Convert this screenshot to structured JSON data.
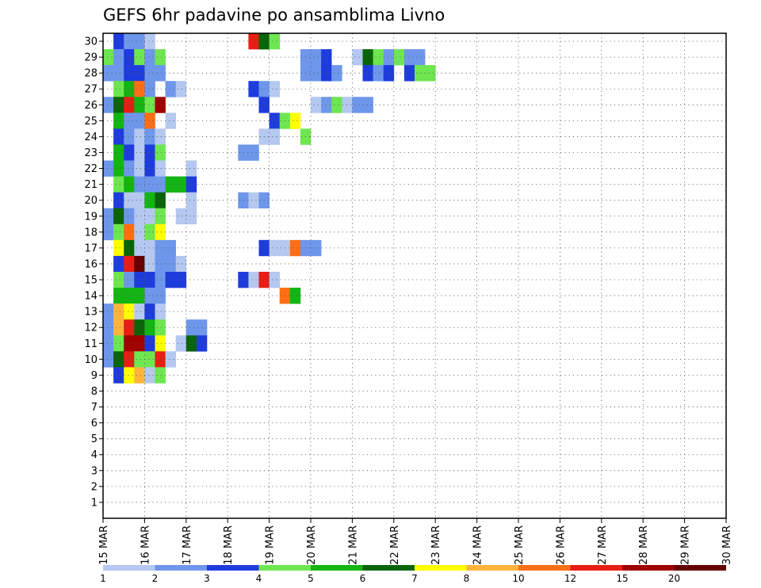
{
  "chart_data": {
    "type": "heatmap",
    "title": "GEFS 6hr padavine po ansamblima Livno",
    "xlabel": "",
    "ylabel": "",
    "x_tick_labels": [
      "15 MAR",
      "16 MAR",
      "17 MAR",
      "18 MAR",
      "19 MAR",
      "20 MAR",
      "21 MAR",
      "22 MAR",
      "23 MAR",
      "24 MAR",
      "25 MAR",
      "26 MAR",
      "27 MAR",
      "28 MAR",
      "29 MAR",
      "30 MAR"
    ],
    "y_tick_labels": [
      "1",
      "2",
      "3",
      "4",
      "5",
      "6",
      "7",
      "8",
      "9",
      "10",
      "11",
      "12",
      "13",
      "14",
      "15",
      "16",
      "17",
      "18",
      "19",
      "20",
      "21",
      "22",
      "23",
      "24",
      "25",
      "26",
      "27",
      "28",
      "29",
      "30"
    ],
    "time_steps": 60,
    "members": 30,
    "grid": true,
    "colorbar": {
      "labels": [
        "1",
        "2",
        "3",
        "4",
        "5",
        "6",
        "7",
        "8",
        "10",
        "12",
        "15",
        "20"
      ],
      "colors": [
        "#b4c8f0",
        "#6e96eb",
        "#1e3cdc",
        "#6ee650",
        "#14b414",
        "#0a640a",
        "#ffff00",
        "#ffb43c",
        "#ff6e14",
        "#e61e14",
        "#a00000",
        "#640000"
      ]
    },
    "cells": [
      [
        1,
        30,
        2
      ],
      [
        2,
        30,
        1
      ],
      [
        3,
        30,
        1
      ],
      [
        4,
        30,
        0
      ],
      [
        14,
        30,
        9
      ],
      [
        15,
        30,
        5
      ],
      [
        16,
        30,
        3
      ],
      [
        0,
        29,
        3
      ],
      [
        1,
        29,
        1
      ],
      [
        2,
        29,
        2
      ],
      [
        3,
        29,
        3
      ],
      [
        4,
        29,
        1
      ],
      [
        5,
        29,
        3
      ],
      [
        19,
        29,
        1
      ],
      [
        20,
        29,
        1
      ],
      [
        21,
        29,
        2
      ],
      [
        24,
        29,
        0
      ],
      [
        25,
        29,
        5
      ],
      [
        26,
        29,
        3
      ],
      [
        27,
        29,
        1
      ],
      [
        28,
        29,
        3
      ],
      [
        29,
        29,
        1
      ],
      [
        30,
        29,
        1
      ],
      [
        0,
        28,
        1
      ],
      [
        1,
        28,
        1
      ],
      [
        2,
        28,
        2
      ],
      [
        3,
        28,
        2
      ],
      [
        4,
        28,
        1
      ],
      [
        5,
        28,
        1
      ],
      [
        19,
        28,
        1
      ],
      [
        20,
        28,
        1
      ],
      [
        21,
        28,
        2
      ],
      [
        22,
        28,
        1
      ],
      [
        25,
        28,
        2
      ],
      [
        26,
        28,
        1
      ],
      [
        27,
        28,
        2
      ],
      [
        29,
        28,
        2
      ],
      [
        30,
        28,
        3
      ],
      [
        31,
        28,
        3
      ],
      [
        1,
        27,
        3
      ],
      [
        2,
        27,
        4
      ],
      [
        3,
        27,
        8
      ],
      [
        4,
        27,
        1
      ],
      [
        6,
        27,
        1
      ],
      [
        7,
        27,
        0
      ],
      [
        14,
        27,
        2
      ],
      [
        15,
        27,
        1
      ],
      [
        16,
        27,
        0
      ],
      [
        0,
        26,
        1
      ],
      [
        1,
        26,
        5
      ],
      [
        2,
        26,
        9
      ],
      [
        3,
        26,
        4
      ],
      [
        4,
        26,
        3
      ],
      [
        5,
        26,
        10
      ],
      [
        15,
        26,
        2
      ],
      [
        20,
        26,
        0
      ],
      [
        21,
        26,
        1
      ],
      [
        22,
        26,
        3
      ],
      [
        23,
        26,
        0
      ],
      [
        24,
        26,
        1
      ],
      [
        25,
        26,
        1
      ],
      [
        1,
        25,
        4
      ],
      [
        2,
        25,
        1
      ],
      [
        3,
        25,
        1
      ],
      [
        4,
        25,
        8
      ],
      [
        6,
        25,
        0
      ],
      [
        16,
        25,
        2
      ],
      [
        17,
        25,
        3
      ],
      [
        18,
        25,
        6
      ],
      [
        1,
        24,
        2
      ],
      [
        2,
        24,
        1
      ],
      [
        3,
        24,
        0
      ],
      [
        4,
        24,
        1
      ],
      [
        5,
        24,
        0
      ],
      [
        15,
        24,
        0
      ],
      [
        16,
        24,
        0
      ],
      [
        19,
        24,
        3
      ],
      [
        1,
        23,
        4
      ],
      [
        2,
        23,
        2
      ],
      [
        3,
        23,
        0
      ],
      [
        4,
        23,
        2
      ],
      [
        5,
        23,
        3
      ],
      [
        13,
        23,
        1
      ],
      [
        14,
        23,
        1
      ],
      [
        0,
        22,
        1
      ],
      [
        1,
        22,
        4
      ],
      [
        2,
        22,
        1
      ],
      [
        3,
        22,
        0
      ],
      [
        4,
        22,
        2
      ],
      [
        5,
        22,
        0
      ],
      [
        8,
        22,
        0
      ],
      [
        1,
        21,
        3
      ],
      [
        2,
        21,
        4
      ],
      [
        3,
        21,
        1
      ],
      [
        4,
        21,
        1
      ],
      [
        5,
        21,
        1
      ],
      [
        6,
        21,
        4
      ],
      [
        7,
        21,
        4
      ],
      [
        8,
        21,
        2
      ],
      [
        1,
        20,
        2
      ],
      [
        2,
        20,
        0
      ],
      [
        3,
        20,
        0
      ],
      [
        4,
        20,
        4
      ],
      [
        5,
        20,
        5
      ],
      [
        8,
        20,
        0
      ],
      [
        13,
        20,
        1
      ],
      [
        14,
        20,
        0
      ],
      [
        15,
        20,
        1
      ],
      [
        0,
        19,
        1
      ],
      [
        1,
        19,
        5
      ],
      [
        2,
        19,
        1
      ],
      [
        3,
        19,
        0
      ],
      [
        4,
        19,
        0
      ],
      [
        5,
        19,
        3
      ],
      [
        7,
        19,
        0
      ],
      [
        8,
        19,
        0
      ],
      [
        0,
        18,
        1
      ],
      [
        1,
        18,
        3
      ],
      [
        2,
        18,
        8
      ],
      [
        3,
        18,
        0
      ],
      [
        4,
        18,
        3
      ],
      [
        5,
        18,
        6
      ],
      [
        1,
        17,
        6
      ],
      [
        2,
        17,
        5
      ],
      [
        3,
        17,
        0
      ],
      [
        4,
        17,
        0
      ],
      [
        5,
        17,
        1
      ],
      [
        6,
        17,
        1
      ],
      [
        15,
        17,
        2
      ],
      [
        16,
        17,
        0
      ],
      [
        17,
        17,
        0
      ],
      [
        18,
        17,
        8
      ],
      [
        19,
        17,
        1
      ],
      [
        20,
        17,
        1
      ],
      [
        1,
        16,
        2
      ],
      [
        2,
        16,
        9
      ],
      [
        3,
        16,
        11
      ],
      [
        4,
        16,
        0
      ],
      [
        5,
        16,
        1
      ],
      [
        6,
        16,
        1
      ],
      [
        7,
        16,
        0
      ],
      [
        1,
        15,
        3
      ],
      [
        2,
        15,
        1
      ],
      [
        3,
        15,
        2
      ],
      [
        4,
        15,
        2
      ],
      [
        5,
        15,
        1
      ],
      [
        6,
        15,
        2
      ],
      [
        7,
        15,
        2
      ],
      [
        13,
        15,
        2
      ],
      [
        14,
        15,
        0
      ],
      [
        15,
        15,
        9
      ],
      [
        16,
        15,
        0
      ],
      [
        1,
        14,
        4
      ],
      [
        2,
        14,
        4
      ],
      [
        3,
        14,
        4
      ],
      [
        4,
        14,
        1
      ],
      [
        5,
        14,
        1
      ],
      [
        17,
        14,
        8
      ],
      [
        18,
        14,
        4
      ],
      [
        0,
        13,
        1
      ],
      [
        1,
        13,
        7
      ],
      [
        2,
        13,
        6
      ],
      [
        3,
        13,
        0
      ],
      [
        4,
        13,
        2
      ],
      [
        5,
        13,
        0
      ],
      [
        0,
        12,
        1
      ],
      [
        1,
        12,
        7
      ],
      [
        2,
        12,
        9
      ],
      [
        3,
        12,
        5
      ],
      [
        4,
        12,
        4
      ],
      [
        5,
        12,
        3
      ],
      [
        8,
        12,
        1
      ],
      [
        9,
        12,
        1
      ],
      [
        0,
        11,
        1
      ],
      [
        1,
        11,
        3
      ],
      [
        2,
        11,
        10
      ],
      [
        3,
        11,
        10
      ],
      [
        4,
        11,
        2
      ],
      [
        5,
        11,
        6
      ],
      [
        7,
        11,
        0
      ],
      [
        8,
        11,
        5
      ],
      [
        9,
        11,
        2
      ],
      [
        0,
        10,
        1
      ],
      [
        1,
        10,
        5
      ],
      [
        2,
        10,
        9
      ],
      [
        3,
        10,
        3
      ],
      [
        4,
        10,
        3
      ],
      [
        5,
        10,
        9
      ],
      [
        6,
        10,
        0
      ],
      [
        1,
        9,
        2
      ],
      [
        2,
        9,
        6
      ],
      [
        3,
        9,
        7
      ],
      [
        4,
        9,
        0
      ],
      [
        5,
        9,
        3
      ]
    ]
  }
}
